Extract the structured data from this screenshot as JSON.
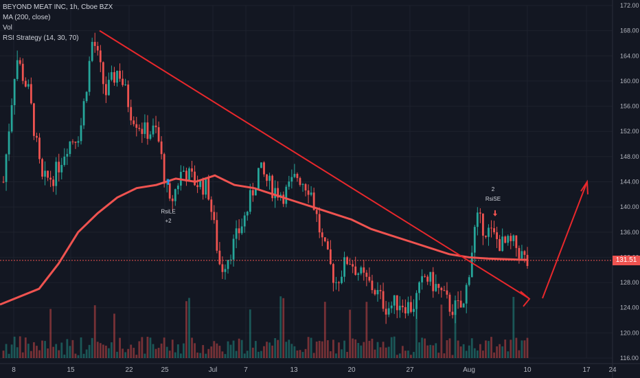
{
  "legend": {
    "title": "BEYOND MEAT INC, 1h, Cboe BZX",
    "ma": "MA (200, close)",
    "vol": "Vol",
    "strategy": "RSI Strategy (14, 30, 70)"
  },
  "last_price": "131.51",
  "colors": {
    "background": "#131722",
    "grid": "#1e222d",
    "up": "#26a69a",
    "down": "#ef5350",
    "ma": "#ef5350",
    "trendline": "#e8282c",
    "axis_text": "#b2b5be",
    "price_line": "#ef5350"
  },
  "chart_data": {
    "type": "candlestick",
    "ylim": [
      116,
      172
    ],
    "y_ticks": [
      "172.00",
      "168.00",
      "164.00",
      "160.00",
      "156.00",
      "152.00",
      "148.00",
      "144.00",
      "140.00",
      "136.00",
      "132.00",
      "128.00",
      "124.00",
      "120.00",
      "116.00"
    ],
    "x_ticks": [
      "8",
      "15",
      "22",
      "25",
      "Jul",
      "7",
      "13",
      "20",
      "27",
      "Aug",
      "10",
      "17",
      "24"
    ],
    "price_path": [
      [
        8,
        144
      ],
      [
        9,
        164
      ],
      [
        10,
        158
      ],
      [
        11,
        144
      ],
      [
        12,
        145
      ],
      [
        13,
        150
      ],
      [
        14,
        152
      ],
      [
        15,
        167
      ],
      [
        16,
        158
      ],
      [
        17,
        162
      ],
      [
        18,
        155
      ],
      [
        19,
        152
      ],
      [
        20,
        152
      ],
      [
        21,
        140
      ],
      [
        22,
        146
      ],
      [
        23,
        144
      ],
      [
        24,
        143
      ],
      [
        25,
        130
      ],
      [
        26,
        134
      ],
      [
        27,
        139
      ],
      [
        28,
        146
      ],
      [
        29,
        143
      ],
      [
        30,
        142
      ],
      [
        31,
        145
      ],
      [
        32,
        143
      ],
      [
        33,
        134
      ],
      [
        34,
        128
      ],
      [
        35,
        132
      ],
      [
        36,
        129
      ],
      [
        37,
        127
      ],
      [
        38,
        124
      ],
      [
        39,
        125
      ],
      [
        40,
        124
      ],
      [
        41,
        129
      ],
      [
        42,
        127
      ],
      [
        43,
        124
      ],
      [
        44,
        124
      ],
      [
        45,
        138
      ],
      [
        46,
        136
      ],
      [
        47,
        134
      ],
      [
        48,
        134
      ],
      [
        49,
        131
      ]
    ],
    "ma_path": [
      [
        8,
        124.5
      ],
      [
        10,
        127
      ],
      [
        11,
        131
      ],
      [
        12,
        136
      ],
      [
        13,
        139
      ],
      [
        14,
        141.5
      ],
      [
        15,
        143
      ],
      [
        16,
        143.5
      ],
      [
        17,
        144.5
      ],
      [
        18,
        144
      ],
      [
        19,
        145
      ],
      [
        20,
        143.5
      ],
      [
        21,
        143
      ],
      [
        22,
        142
      ],
      [
        23,
        141
      ],
      [
        24,
        140
      ],
      [
        25,
        139
      ],
      [
        26,
        138
      ],
      [
        27,
        136.5
      ],
      [
        28,
        135.5
      ],
      [
        29,
        134.5
      ],
      [
        30,
        133.5
      ],
      [
        31,
        132.5
      ],
      [
        32,
        132
      ],
      [
        33,
        131.8
      ],
      [
        34,
        131.7
      ],
      [
        35,
        131.6
      ]
    ],
    "trendline": [
      [
        15.3,
        168
      ],
      [
        33.3,
        125.5
      ]
    ],
    "projection": [
      [
        35,
        125.5
      ],
      [
        38,
        144
      ]
    ],
    "current_price": 131.51,
    "annotations": [
      {
        "text": "RsiLE",
        "x": 18.9,
        "y": 139
      },
      {
        "text": "+2",
        "x": 18.9,
        "y": 137.5
      },
      {
        "text": "2",
        "x": 32.6,
        "y": 142.5
      },
      {
        "text": "RsiSE",
        "x": 32.6,
        "y": 141
      }
    ]
  }
}
